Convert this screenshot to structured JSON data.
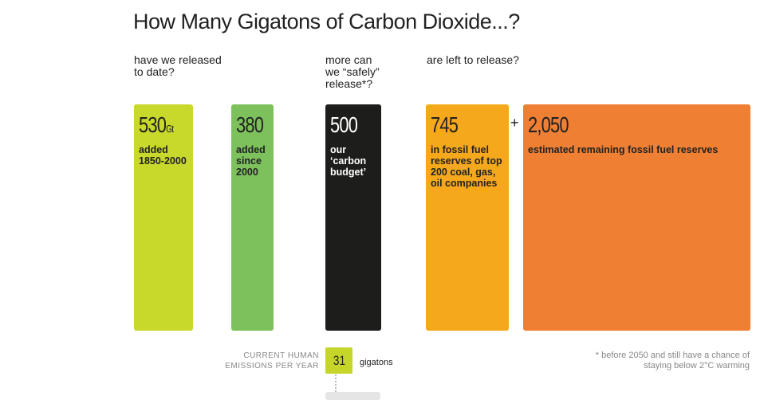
{
  "chart_data": {
    "type": "proportional-box",
    "title": "How Many Gigatons of Carbon Dioxide...?",
    "headings": [
      "have we released to date?",
      "more can we “safely” release*?",
      "are left to release?"
    ],
    "values": [
      530,
      380,
      500,
      745,
      2050
    ],
    "value_labels": [
      "530",
      "380",
      "500",
      "745",
      "2,050"
    ],
    "unit": "Gt",
    "descriptions": [
      "added 1850-2000",
      "added since 2000",
      "our ‘carbon budget’",
      "in fossil fuel reserves of top 200 coal, gas, oil companies",
      "estimated remaining fossil fuel reserves"
    ],
    "colors": [
      "#c8d92b",
      "#7cc15c",
      "#1d1d1b",
      "#f6a81c",
      "#ee7f33"
    ],
    "operator": "+",
    "emissions": {
      "label": "CURRENT HUMAN EMISSIONS PER YEAR",
      "value": 31,
      "unit": "gigatons",
      "color": "#c5d52a"
    },
    "footnote": "* before 2050 and still have a chance of staying below 2°C warming"
  }
}
